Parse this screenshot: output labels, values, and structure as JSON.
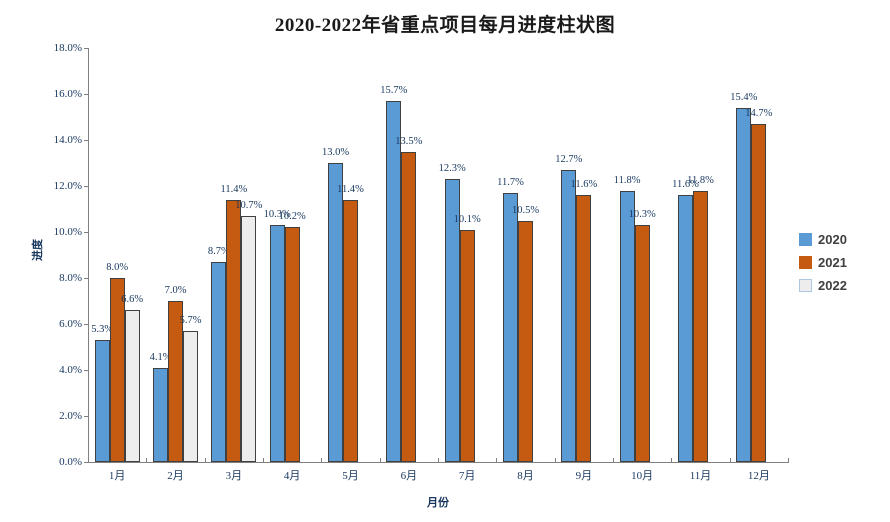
{
  "page": {
    "background": "#FFFFFF"
  },
  "chart_data": {
    "type": "bar",
    "title": "2020-2022年省重点项目每月进度柱状图",
    "xlabel": "月份",
    "ylabel": "进度",
    "ylim": [
      0,
      18
    ],
    "ytick_step": 2,
    "ytick_labels": [
      "0.0%",
      "2.0%",
      "4.0%",
      "6.0%",
      "8.0%",
      "10.0%",
      "12.0%",
      "14.0%",
      "16.0%",
      "18.0%"
    ],
    "value_suffix": "%",
    "grid": false,
    "legend_position": "right",
    "categories": [
      "1月",
      "2月",
      "3月",
      "4月",
      "5月",
      "6月",
      "7月",
      "8月",
      "9月",
      "10月",
      "11月",
      "12月"
    ],
    "series": [
      {
        "name": "2020",
        "color": "#5B9BD5",
        "swatch_border": "#5B9BD5",
        "values": [
          5.3,
          4.1,
          8.7,
          10.3,
          13.0,
          15.7,
          12.3,
          11.7,
          12.7,
          11.8,
          11.6,
          15.4
        ]
      },
      {
        "name": "2021",
        "color": "#C55A11",
        "swatch_border": "#C55A11",
        "values": [
          8.0,
          7.0,
          11.4,
          10.2,
          11.4,
          13.5,
          10.1,
          10.5,
          11.6,
          10.3,
          11.8,
          14.7
        ]
      },
      {
        "name": "2022",
        "color": "#EDEDED",
        "swatch_border": "#AEC6E0",
        "values": [
          6.6,
          5.7,
          10.7,
          null,
          null,
          null,
          null,
          null,
          null,
          null,
          null,
          null
        ]
      }
    ],
    "styles": {
      "bar_border": "#404040",
      "axis_line": "#808080",
      "data_label_color": "#17375E",
      "axis_text_color": "#17375E",
      "title_color": "#1A1A1A",
      "legend_text_color": "#404040"
    }
  }
}
